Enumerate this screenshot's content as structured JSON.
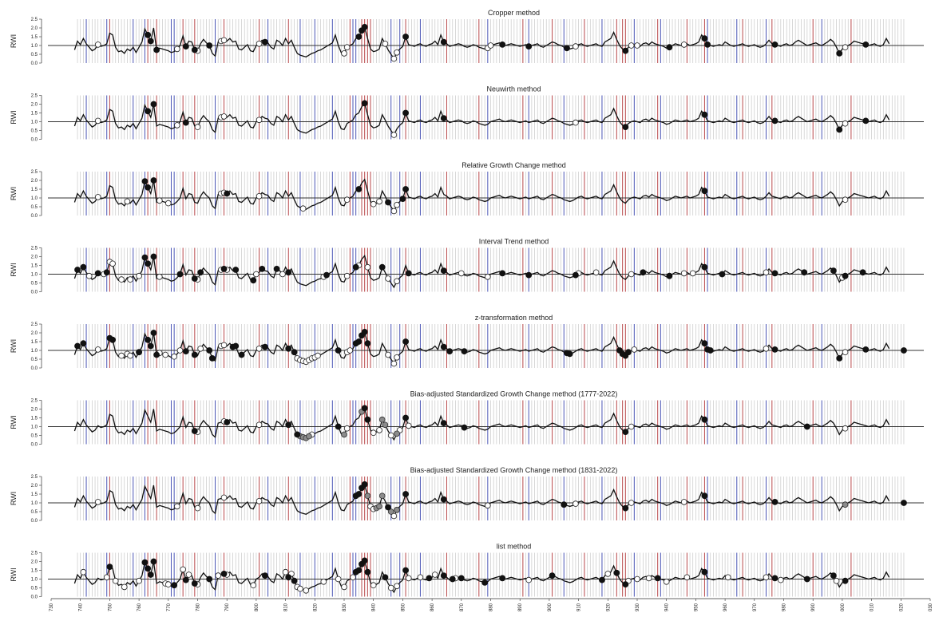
{
  "chart_data": {
    "type": "line",
    "ylabel": "RWI",
    "y_ticks": [
      "0.0",
      "0.5",
      "1.0",
      "1.5",
      "2.0",
      "2.5"
    ],
    "ylim": [
      0,
      2.5
    ],
    "xlim": [
      1730,
      2030
    ],
    "x_ticks": [
      1730,
      1740,
      1750,
      1760,
      1770,
      1780,
      1790,
      1800,
      1810,
      1820,
      1830,
      1840,
      1850,
      1860,
      1870,
      1880,
      1890,
      1900,
      1910,
      1920,
      1930,
      1940,
      1950,
      1960,
      1970,
      1980,
      1990,
      2000,
      2010,
      2020,
      2030
    ],
    "x_tick_labels": [
      "730",
      "740",
      "750",
      "760",
      "770",
      "780",
      "790",
      "800",
      "810",
      "820",
      "830",
      "840",
      "850",
      "860",
      "870",
      "880",
      "890",
      "900",
      "910",
      "920",
      "930",
      "940",
      "950",
      "960",
      "970",
      "980",
      "990",
      "000",
      "010",
      "020",
      "030"
    ],
    "reference_line": 1.0,
    "grid": "vertical lines every year (grey); red/blue lines mark selected years",
    "red_years": [
      1750,
      1763,
      1766,
      1775,
      1779,
      1789,
      1801,
      1811,
      1832,
      1836,
      1837,
      1838,
      1839,
      1851,
      1865,
      1876,
      1891,
      1901,
      1912,
      1923,
      1925,
      1926,
      1937,
      1947,
      1953,
      1966,
      1976,
      1990,
      2003
    ],
    "blue_years": [
      1742,
      1749,
      1758,
      1762,
      1771,
      1772,
      1786,
      1804,
      1815,
      1820,
      1826,
      1833,
      1834,
      1846,
      1849,
      1856,
      1879,
      1893,
      1905,
      1918,
      1929,
      1938,
      1954,
      1964,
      1974,
      1993
    ],
    "x": [
      1738,
      1739,
      1740,
      1741,
      1742,
      1743,
      1744,
      1745,
      1746,
      1747,
      1748,
      1749,
      1750,
      1751,
      1752,
      1753,
      1754,
      1755,
      1756,
      1757,
      1758,
      1759,
      1760,
      1761,
      1762,
      1763,
      1764,
      1765,
      1766,
      1767,
      1768,
      1769,
      1770,
      1771,
      1772,
      1773,
      1774,
      1775,
      1776,
      1777,
      1778,
      1779,
      1780,
      1781,
      1782,
      1783,
      1784,
      1785,
      1786,
      1787,
      1788,
      1789,
      1790,
      1791,
      1792,
      1793,
      1794,
      1795,
      1796,
      1797,
      1798,
      1799,
      1800,
      1801,
      1802,
      1803,
      1804,
      1805,
      1806,
      1807,
      1808,
      1809,
      1810,
      1811,
      1812,
      1813,
      1814,
      1815,
      1816,
      1817,
      1818,
      1819,
      1820,
      1821,
      1822,
      1823,
      1824,
      1825,
      1826,
      1827,
      1828,
      1829,
      1830,
      1831,
      1832,
      1833,
      1834,
      1835,
      1836,
      1837,
      1838,
      1839,
      1840,
      1841,
      1842,
      1843,
      1844,
      1845,
      1846,
      1847,
      1848,
      1849,
      1850,
      1851,
      1852,
      1853,
      1854,
      1855,
      1856,
      1857,
      1858,
      1859,
      1860,
      1861,
      1862,
      1863,
      1864,
      1865,
      1866,
      1867,
      1868,
      1869,
      1870,
      1871,
      1872,
      1873,
      1874,
      1875,
      1876,
      1877,
      1878,
      1879,
      1880,
      1881,
      1882,
      1883,
      1884,
      1885,
      1886,
      1887,
      1888,
      1889,
      1890,
      1891,
      1892,
      1893,
      1894,
      1895,
      1896,
      1897,
      1898,
      1899,
      1900,
      1901,
      1902,
      1903,
      1904,
      1905,
      1906,
      1907,
      1908,
      1909,
      1910,
      1911,
      1912,
      1913,
      1914,
      1915,
      1916,
      1917,
      1918,
      1919,
      1920,
      1921,
      1922,
      1923,
      1924,
      1925,
      1926,
      1927,
      1928,
      1929,
      1930,
      1931,
      1932,
      1933,
      1934,
      1935,
      1936,
      1937,
      1938,
      1939,
      1940,
      1941,
      1942,
      1943,
      1944,
      1945,
      1946,
      1947,
      1948,
      1949,
      1950,
      1951,
      1952,
      1953,
      1954,
      1955,
      1956,
      1957,
      1958,
      1959,
      1960,
      1961,
      1962,
      1963,
      1964,
      1965,
      1966,
      1967,
      1968,
      1969,
      1970,
      1971,
      1972,
      1973,
      1974,
      1975,
      1976,
      1977,
      1978,
      1979,
      1980,
      1981,
      1982,
      1983,
      1984,
      1985,
      1986,
      1987,
      1988,
      1989,
      1990,
      1991,
      1992,
      1993,
      1994,
      1995,
      1996,
      1997,
      1998,
      1999,
      2000,
      2001,
      2002,
      2003,
      2004,
      2005,
      2006,
      2007,
      2008,
      2009,
      2010,
      2011,
      2012,
      2013,
      2014,
      2015,
      2016,
      2017,
      2018,
      2019,
      2020,
      2021,
      2022
    ],
    "rwi": [
      0.75,
      1.25,
      1.05,
      1.4,
      1.1,
      0.9,
      0.7,
      0.8,
      1.05,
      0.95,
      1.0,
      1.1,
      1.7,
      1.6,
      0.9,
      0.65,
      0.7,
      0.55,
      0.8,
      0.7,
      0.9,
      0.6,
      0.9,
      1.2,
      1.95,
      1.6,
      1.25,
      2.0,
      0.75,
      0.85,
      0.8,
      0.75,
      0.7,
      0.6,
      0.65,
      0.8,
      1.0,
      1.55,
      0.95,
      1.25,
      1.2,
      0.75,
      0.7,
      1.1,
      1.35,
      1.15,
      1.0,
      0.55,
      0.4,
      1.2,
      1.25,
      1.3,
      1.25,
      1.4,
      1.2,
      1.25,
      0.8,
      0.75,
      0.9,
      1.05,
      0.7,
      0.65,
      1.0,
      1.1,
      1.3,
      1.2,
      1.15,
      0.9,
      0.8,
      1.3,
      1.2,
      1.0,
      1.4,
      1.1,
      1.3,
      0.9,
      0.55,
      0.45,
      0.4,
      0.35,
      0.45,
      0.55,
      0.6,
      0.7,
      0.75,
      0.85,
      0.95,
      1.05,
      1.15,
      1.6,
      1.0,
      0.6,
      0.55,
      0.9,
      1.0,
      1.1,
      1.4,
      1.5,
      1.85,
      2.05,
      1.4,
      0.8,
      0.65,
      0.7,
      0.8,
      1.4,
      1.1,
      0.75,
      0.5,
      0.25,
      0.6,
      0.8,
      0.95,
      1.5,
      1.05,
      1.0,
      0.95,
      1.05,
      1.1,
      1.0,
      0.95,
      1.05,
      1.1,
      1.25,
      1.05,
      1.6,
      1.2,
      1.1,
      0.95,
      1.0,
      1.05,
      1.1,
      1.05,
      0.95,
      0.9,
      0.95,
      1.05,
      1.0,
      0.9,
      0.85,
      0.8,
      0.85,
      1.0,
      1.05,
      1.1,
      1.15,
      1.05,
      1.0,
      1.05,
      1.1,
      1.05,
      1.0,
      0.95,
      1.0,
      1.05,
      0.95,
      1.0,
      1.05,
      1.1,
      0.95,
      0.9,
      1.0,
      1.1,
      1.2,
      1.15,
      1.05,
      1.0,
      0.9,
      0.85,
      0.8,
      0.85,
      0.95,
      1.05,
      1.1,
      1.0,
      0.95,
      1.0,
      1.05,
      1.1,
      1.0,
      0.95,
      1.2,
      1.3,
      1.4,
      1.75,
      1.35,
      1.0,
      0.8,
      0.7,
      0.9,
      1.0,
      1.05,
      1.0,
      0.95,
      1.1,
      1.15,
      1.05,
      1.2,
      1.1,
      1.05,
      1.0,
      0.95,
      0.85,
      0.9,
      1.0,
      1.1,
      1.05,
      1.0,
      1.05,
      1.1,
      1.0,
      1.05,
      1.1,
      1.2,
      1.6,
      1.4,
      1.05,
      1.0,
      0.95,
      1.0,
      1.05,
      1.0,
      1.2,
      1.1,
      1.0,
      0.95,
      1.0,
      1.05,
      1.1,
      1.0,
      0.95,
      1.0,
      1.05,
      0.95,
      0.9,
      0.95,
      1.1,
      1.3,
      1.1,
      1.05,
      1.0,
      0.95,
      1.05,
      1.1,
      1.0,
      1.05,
      1.2,
      1.3,
      1.2,
      1.1,
      1.0,
      1.05,
      1.1,
      1.15,
      1.05,
      1.0,
      1.1,
      1.2,
      1.35,
      1.2,
      0.9,
      0.55,
      0.8,
      0.9,
      1.0,
      1.1,
      1.25,
      1.2,
      1.15,
      1.1,
      1.05,
      1.0,
      1.05,
      1.1,
      1.0,
      0.95,
      1.05,
      1.4,
      1.1
    ],
    "series": [
      {
        "name": "Cropper method",
        "pos": [
          1763,
          1764,
          1766,
          1776,
          1779,
          1784,
          1803,
          1835,
          1836,
          1837,
          1851,
          1864,
          1884,
          1893,
          1906,
          1926,
          1941,
          1953,
          1954,
          1977,
          1999,
          2008
        ],
        "neg": [
          1746,
          1763,
          1773,
          1780,
          1788,
          1789,
          1801,
          1830,
          1831,
          1844,
          1847,
          1848,
          1879,
          1880,
          1909,
          1928,
          1930,
          1946,
          2001
        ]
      },
      {
        "name": "Neuwirth method",
        "pos": [
          1763,
          1765,
          1776,
          1837,
          1851,
          1864,
          1926,
          1953,
          1977,
          1999,
          2008
        ],
        "neg": [
          1746,
          1773,
          1780,
          1788,
          1789,
          1801,
          1847,
          1909,
          2001
        ]
      },
      {
        "name": "Relative Growth Change method",
        "pos": [
          1762,
          1763,
          1765,
          1790,
          1835,
          1845,
          1850,
          1851,
          1953
        ],
        "neg": [
          1746,
          1756,
          1767,
          1770,
          1788,
          1789,
          1801,
          1816,
          1831,
          1840,
          1842,
          1847,
          1848,
          2001
        ]
      },
      {
        "name": "Interval Trend method",
        "pos": [
          1739,
          1741,
          1746,
          1749,
          1762,
          1763,
          1765,
          1774,
          1779,
          1781,
          1789,
          1793,
          1799,
          1802,
          1807,
          1811,
          1824,
          1834,
          1843,
          1852,
          1864,
          1884,
          1893,
          1909,
          1932,
          1941,
          1953,
          1959,
          1977,
          1987,
          1997,
          2001,
          2007
        ],
        "neg": [
          1743,
          1748,
          1750,
          1751,
          1754,
          1757,
          1760,
          1767,
          1780,
          1788,
          1790,
          1800,
          1809,
          1823,
          1831,
          1835,
          1838,
          1845,
          1848,
          1870,
          1879,
          1910,
          1916,
          1928,
          1941,
          1946,
          1949,
          1974,
          2000,
          2001
        ]
      },
      {
        "name": "z-transformation method",
        "pos": [
          1739,
          1741,
          1750,
          1751,
          1760,
          1763,
          1764,
          1765,
          1766,
          1776,
          1779,
          1784,
          1785,
          1792,
          1793,
          1795,
          1803,
          1811,
          1813,
          1828,
          1834,
          1835,
          1836,
          1837,
          1838,
          1851,
          1864,
          1866,
          1871,
          1906,
          1907,
          1924,
          1925,
          1926,
          1927,
          1953,
          1954,
          1955,
          1977,
          1999,
          2008,
          2021
        ],
        "neg": [
          1746,
          1751,
          1754,
          1756,
          1757,
          1760,
          1767,
          1769,
          1772,
          1774,
          1779,
          1781,
          1788,
          1789,
          1801,
          1814,
          1815,
          1816,
          1817,
          1818,
          1819,
          1820,
          1821,
          1831,
          1832,
          1845,
          1847,
          1848,
          1929,
          1974,
          2001
        ]
      },
      {
        "name": "Bias-adjusted Standardized Growth Change method (1777-2022)",
        "pos": [
          1779,
          1790,
          1811,
          1814,
          1828,
          1837,
          1838,
          1851,
          1864,
          1871,
          1926,
          1953,
          1988
        ],
        "neg": [
          1780,
          1789,
          1801,
          1819,
          1831,
          1840,
          1842,
          1846,
          1849,
          1852,
          1928,
          2001
        ],
        "grey": [
          1815,
          1816,
          1817,
          1818,
          1830,
          1836,
          1838,
          1843,
          1844,
          1848
        ]
      },
      {
        "name": "Bias-adjusted Standardized Growth Change method (1831-2022)",
        "pos": [
          1834,
          1835,
          1836,
          1837,
          1845,
          1851,
          1864,
          1905,
          1926,
          1953,
          1977,
          2021
        ],
        "neg": [
          1746,
          1773,
          1780,
          1789,
          1801,
          1839,
          1840,
          1847,
          1848,
          1879,
          1909,
          1928,
          1946,
          2001
        ],
        "grey": [
          1837,
          1838,
          1841,
          1842,
          1843,
          1846,
          1848,
          1905,
          2001
        ]
      },
      {
        "name": "list method",
        "pos": [
          1750,
          1762,
          1763,
          1764,
          1765,
          1772,
          1776,
          1779,
          1784,
          1789,
          1803,
          1811,
          1813,
          1834,
          1835,
          1836,
          1837,
          1838,
          1844,
          1851,
          1859,
          1864,
          1867,
          1870,
          1878,
          1884,
          1901,
          1918,
          1923,
          1926,
          1937,
          1953,
          1977,
          1988,
          1997,
          2001
        ],
        "neg": [
          1741,
          1749,
          1752,
          1755,
          1760,
          1762,
          1769,
          1770,
          1775,
          1777,
          1780,
          1787,
          1790,
          1799,
          1810,
          1812,
          1814,
          1815,
          1817,
          1823,
          1828,
          1830,
          1833,
          1840,
          1846,
          1848,
          1852,
          1856,
          1861,
          1868,
          1893,
          1920,
          1927,
          1930,
          1934,
          1940,
          1947,
          1961,
          1974,
          1979,
          1998
        ]
      }
    ]
  }
}
